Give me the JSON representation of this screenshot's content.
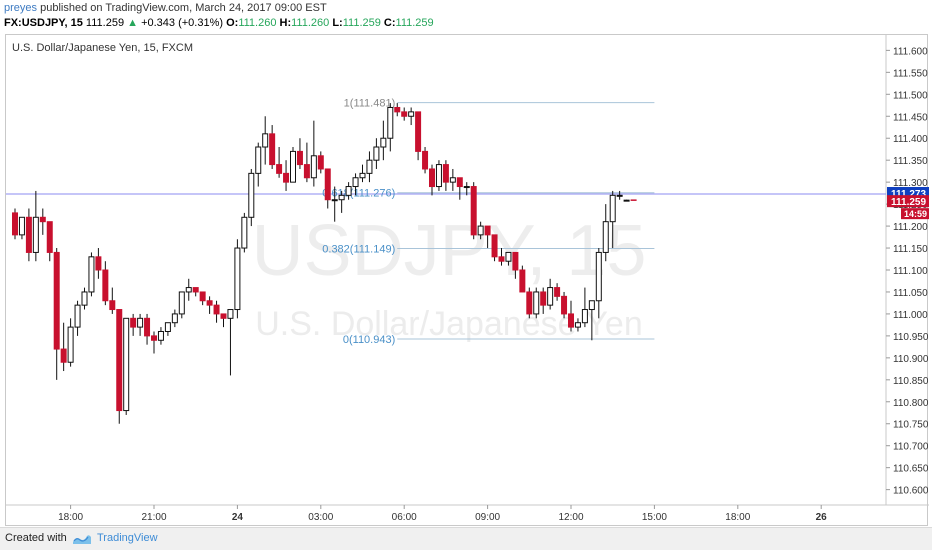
{
  "header": {
    "user": "preyes",
    "published": " published on TradingView.com, March 24, 2017 09:00 EST",
    "symbol": "FX:USDJPY, 15",
    "price": " 111.259 ",
    "change_arrow": "▲",
    "change": " +0.343 (+0.31%) ",
    "o_label": "O:",
    "o_value": "111.260",
    "h_label": " H:",
    "h_value": "111.260",
    "l_label": " L:",
    "l_value": "111.259",
    "c_label": " C:",
    "c_value": "111.259"
  },
  "footer": {
    "created": "Created with",
    "brand": "TradingView"
  },
  "colors": {
    "up": "#ffffff",
    "down": "#c8102e",
    "wick": "#111111",
    "fib": "#a9c4d9",
    "hline": "#8b8bf0",
    "blue_badge": "#0f3fbf",
    "red_badge": "#c8102e"
  },
  "chart_data": {
    "type": "candlestick",
    "title": "U.S. Dollar/Japanese Yen, 15, FXCM",
    "watermark_symbol": "USDJPY, 15",
    "watermark_name": "U.S. Dollar/Japanese Yen",
    "ylim": [
      110.565,
      111.635
    ],
    "y_ticks": [
      "111.600",
      "111.550",
      "111.500",
      "111.450",
      "111.400",
      "111.350",
      "111.300",
      "111.250",
      "111.200",
      "111.150",
      "111.100",
      "111.050",
      "111.000",
      "110.950",
      "110.900",
      "110.850",
      "110.800",
      "110.750",
      "110.700",
      "110.650",
      "110.600"
    ],
    "x_ticks": [
      {
        "i": 8,
        "label": "18:00",
        "bold": false
      },
      {
        "i": 20,
        "label": "21:00",
        "bold": false
      },
      {
        "i": 32,
        "label": "24",
        "bold": true
      },
      {
        "i": 44,
        "label": "03:00",
        "bold": false
      },
      {
        "i": 56,
        "label": "06:00",
        "bold": false
      },
      {
        "i": 68,
        "label": "09:00",
        "bold": false
      },
      {
        "i": 80,
        "label": "12:00",
        "bold": false
      },
      {
        "i": 92,
        "label": "15:00",
        "bold": false
      },
      {
        "i": 104,
        "label": "18:00",
        "bold": false
      },
      {
        "i": 116,
        "label": "26",
        "bold": true
      }
    ],
    "x_count": 122,
    "candles": [
      [
        111.23,
        111.24,
        111.17,
        111.18
      ],
      [
        111.18,
        111.22,
        111.17,
        111.22
      ],
      [
        111.22,
        111.24,
        111.12,
        111.14
      ],
      [
        111.14,
        111.28,
        111.12,
        111.22
      ],
      [
        111.22,
        111.24,
        111.18,
        111.21
      ],
      [
        111.21,
        111.21,
        111.12,
        111.14
      ],
      [
        111.14,
        111.15,
        110.85,
        110.92
      ],
      [
        110.92,
        110.98,
        110.87,
        110.89
      ],
      [
        110.89,
        110.99,
        110.88,
        110.97
      ],
      [
        110.97,
        111.03,
        110.95,
        111.02
      ],
      [
        111.02,
        111.06,
        111.01,
        111.05
      ],
      [
        111.05,
        111.14,
        111.04,
        111.13
      ],
      [
        111.13,
        111.15,
        111.08,
        111.1
      ],
      [
        111.1,
        111.12,
        111.02,
        111.03
      ],
      [
        111.03,
        111.06,
        111.0,
        111.01
      ],
      [
        111.01,
        111.01,
        110.75,
        110.78
      ],
      [
        110.78,
        110.99,
        110.77,
        110.99
      ],
      [
        110.99,
        111.0,
        110.95,
        110.97
      ],
      [
        110.97,
        111.0,
        110.95,
        110.99
      ],
      [
        110.99,
        111.0,
        110.93,
        110.95
      ],
      [
        110.95,
        110.96,
        110.91,
        110.94
      ],
      [
        110.94,
        110.97,
        110.93,
        110.96
      ],
      [
        110.96,
        110.98,
        110.95,
        110.98
      ],
      [
        110.98,
        111.01,
        110.97,
        111.0
      ],
      [
        111.0,
        111.05,
        110.99,
        111.05
      ],
      [
        111.05,
        111.08,
        111.03,
        111.06
      ],
      [
        111.06,
        111.06,
        111.04,
        111.05
      ],
      [
        111.05,
        111.05,
        111.02,
        111.03
      ],
      [
        111.03,
        111.04,
        111.0,
        111.02
      ],
      [
        111.02,
        111.03,
        110.98,
        111.0
      ],
      [
        111.0,
        111.0,
        110.97,
        110.99
      ],
      [
        110.99,
        111.01,
        110.86,
        111.01
      ],
      [
        111.01,
        111.17,
        110.99,
        111.15
      ],
      [
        111.15,
        111.23,
        111.14,
        111.22
      ],
      [
        111.22,
        111.33,
        111.2,
        111.32
      ],
      [
        111.32,
        111.39,
        111.29,
        111.38
      ],
      [
        111.38,
        111.45,
        111.34,
        111.41
      ],
      [
        111.41,
        111.43,
        111.33,
        111.34
      ],
      [
        111.34,
        111.38,
        111.31,
        111.32
      ],
      [
        111.32,
        111.35,
        111.28,
        111.3
      ],
      [
        111.3,
        111.38,
        111.3,
        111.37
      ],
      [
        111.37,
        111.4,
        111.33,
        111.34
      ],
      [
        111.34,
        111.39,
        111.3,
        111.31
      ],
      [
        111.31,
        111.44,
        111.29,
        111.36
      ],
      [
        111.36,
        111.37,
        111.32,
        111.33
      ],
      [
        111.33,
        111.33,
        111.24,
        111.26
      ],
      [
        111.26,
        111.29,
        111.21,
        111.26
      ],
      [
        111.26,
        111.28,
        111.23,
        111.27
      ],
      [
        111.27,
        111.3,
        111.26,
        111.29
      ],
      [
        111.29,
        111.32,
        111.27,
        111.31
      ],
      [
        111.31,
        111.34,
        111.3,
        111.32
      ],
      [
        111.32,
        111.37,
        111.3,
        111.35
      ],
      [
        111.35,
        111.4,
        111.33,
        111.38
      ],
      [
        111.38,
        111.44,
        111.35,
        111.4
      ],
      [
        111.4,
        111.48,
        111.37,
        111.47
      ],
      [
        111.47,
        111.48,
        111.45,
        111.46
      ],
      [
        111.46,
        111.47,
        111.44,
        111.45
      ],
      [
        111.45,
        111.47,
        111.43,
        111.46
      ],
      [
        111.46,
        111.46,
        111.35,
        111.37
      ],
      [
        111.37,
        111.38,
        111.32,
        111.33
      ],
      [
        111.33,
        111.34,
        111.27,
        111.29
      ],
      [
        111.29,
        111.35,
        111.28,
        111.34
      ],
      [
        111.34,
        111.35,
        111.28,
        111.3
      ],
      [
        111.3,
        111.33,
        111.28,
        111.31
      ],
      [
        111.31,
        111.31,
        111.26,
        111.29
      ],
      [
        111.29,
        111.3,
        111.27,
        111.29
      ],
      [
        111.29,
        111.3,
        111.17,
        111.18
      ],
      [
        111.18,
        111.21,
        111.17,
        111.2
      ],
      [
        111.2,
        111.2,
        111.15,
        111.18
      ],
      [
        111.18,
        111.18,
        111.12,
        111.13
      ],
      [
        111.13,
        111.15,
        111.11,
        111.12
      ],
      [
        111.12,
        111.14,
        111.11,
        111.14
      ],
      [
        111.14,
        111.14,
        111.08,
        111.1
      ],
      [
        111.1,
        111.11,
        111.05,
        111.05
      ],
      [
        111.05,
        111.06,
        110.99,
        111.0
      ],
      [
        111.0,
        111.06,
        110.99,
        111.05
      ],
      [
        111.05,
        111.06,
        111.0,
        111.02
      ],
      [
        111.02,
        111.08,
        111.01,
        111.06
      ],
      [
        111.06,
        111.07,
        111.03,
        111.04
      ],
      [
        111.04,
        111.05,
        110.99,
        111.0
      ],
      [
        111.0,
        111.03,
        110.96,
        110.97
      ],
      [
        110.97,
        110.99,
        110.96,
        110.98
      ],
      [
        110.98,
        111.06,
        110.97,
        111.01
      ],
      [
        111.01,
        111.03,
        110.94,
        111.03
      ],
      [
        111.03,
        111.15,
        110.99,
        111.14
      ],
      [
        111.14,
        111.25,
        111.12,
        111.21
      ],
      [
        111.21,
        111.28,
        111.15,
        111.27
      ],
      [
        111.27,
        111.28,
        111.26,
        111.27
      ],
      [
        111.259,
        111.26,
        111.259,
        111.259
      ]
    ],
    "fib": [
      {
        "ratio": "1",
        "value": 111.481,
        "label": "1(111.481)"
      },
      {
        "ratio": "0.618",
        "value": 111.276,
        "label": "0.618(111.276)"
      },
      {
        "ratio": "0.382",
        "value": 111.149,
        "label": "0.382(111.149)"
      },
      {
        "ratio": "0",
        "value": 110.943,
        "label": "0(110.943)"
      }
    ],
    "fib_start_index": 55,
    "fib_end_index": 92,
    "hline_value": 111.273,
    "badges": [
      {
        "value": 111.273,
        "label": "111.273",
        "color": "#0f3fbf"
      },
      {
        "value": 111.259,
        "label": "111.259",
        "color": "#c8102e"
      }
    ],
    "countdown": "14:59"
  }
}
